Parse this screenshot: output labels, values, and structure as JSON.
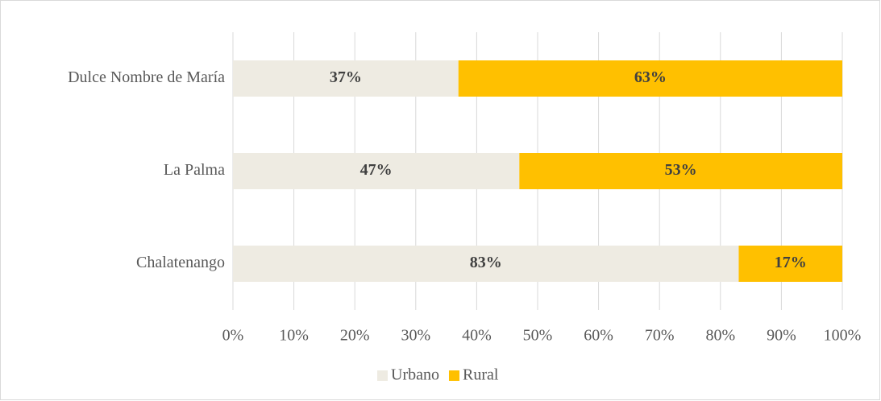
{
  "chart_data": {
    "type": "stacked-bar-horizontal",
    "categories": [
      "Dulce Nombre de María",
      "La Palma",
      "Chalatenango"
    ],
    "series": [
      {
        "name": "Urbano",
        "color": "#eeebe2",
        "values": [
          37,
          47,
          83
        ],
        "value_labels": [
          "37%",
          "47%",
          "83%"
        ]
      },
      {
        "name": "Rural",
        "color": "#ffc000",
        "values": [
          63,
          53,
          17
        ],
        "value_labels": [
          "63%",
          "53%",
          "17%"
        ]
      }
    ],
    "xlim": [
      0,
      100
    ],
    "xticks": [
      {
        "value": 0,
        "label": "0%"
      },
      {
        "value": 10,
        "label": "10%"
      },
      {
        "value": 20,
        "label": "20%"
      },
      {
        "value": 30,
        "label": "30%"
      },
      {
        "value": 40,
        "label": "40%"
      },
      {
        "value": 50,
        "label": "50%"
      },
      {
        "value": 60,
        "label": "60%"
      },
      {
        "value": 70,
        "label": "70%"
      },
      {
        "value": 80,
        "label": "80%"
      },
      {
        "value": 90,
        "label": "90%"
      },
      {
        "value": 100,
        "label": "100%"
      }
    ],
    "grid": true,
    "legend": "bottom"
  }
}
